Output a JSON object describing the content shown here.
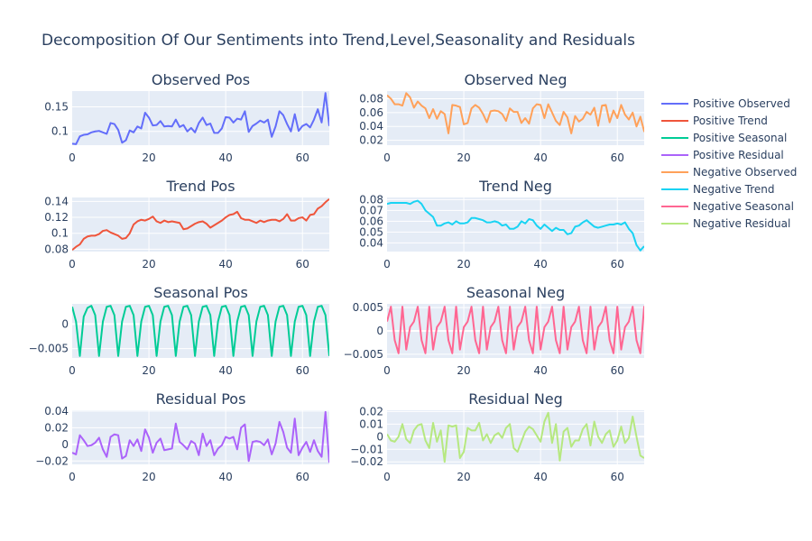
{
  "chart_data": {
    "type": "line",
    "title": "Decomposition Of Our Sentiments into Trend,Level,Seasonality and Residuals",
    "legend": {
      "placement": "right",
      "entries": [
        {
          "name": "Positive Observed",
          "color": "#636efa"
        },
        {
          "name": "Positive Trend",
          "color": "#ef553b"
        },
        {
          "name": "Positive Seasonal",
          "color": "#00cc96"
        },
        {
          "name": "Positive Residual",
          "color": "#ab63fa"
        },
        {
          "name": "Negative Observed",
          "color": "#ffa15a"
        },
        {
          "name": "Negative Trend",
          "color": "#19d3f3"
        },
        {
          "name": "Negative Seasonal",
          "color": "#ff6692"
        },
        {
          "name": "Negative Residual",
          "color": "#b6e880"
        }
      ]
    },
    "panels": [
      {
        "title": "Observed Pos",
        "series_name": "Positive Observed",
        "color": "#636efa",
        "xlim": [
          0,
          67
        ],
        "ylim": [
          0.072,
          0.182
        ],
        "xticks": [
          0,
          20,
          40,
          60
        ],
        "yticks": [
          0.1,
          0.15
        ],
        "ytick_labels": [
          "0.1",
          "0.15"
        ],
        "values": [
          0.075,
          0.074,
          0.09,
          0.093,
          0.094,
          0.098,
          0.1,
          0.101,
          0.098,
          0.095,
          0.117,
          0.115,
          0.103,
          0.077,
          0.082,
          0.102,
          0.098,
          0.11,
          0.106,
          0.138,
          0.128,
          0.112,
          0.113,
          0.121,
          0.11,
          0.111,
          0.11,
          0.124,
          0.109,
          0.113,
          0.1,
          0.107,
          0.098,
          0.117,
          0.128,
          0.113,
          0.116,
          0.097,
          0.097,
          0.106,
          0.129,
          0.128,
          0.118,
          0.126,
          0.124,
          0.141,
          0.099,
          0.111,
          0.116,
          0.122,
          0.118,
          0.124,
          0.089,
          0.11,
          0.141,
          0.133,
          0.115,
          0.1,
          0.135,
          0.101,
          0.111,
          0.115,
          0.108,
          0.124,
          0.145,
          0.118,
          0.178,
          0.111
        ]
      },
      {
        "title": "Observed Neg",
        "series_name": "Negative Observed",
        "color": "#ffa15a",
        "xlim": [
          0,
          67
        ],
        "ylim": [
          0.013,
          0.091
        ],
        "xticks": [
          0,
          20,
          40,
          60
        ],
        "yticks": [
          0.02,
          0.04,
          0.06,
          0.08
        ],
        "ytick_labels": [
          "0.02",
          "0.04",
          "0.06",
          "0.08"
        ],
        "values": [
          0.085,
          0.08,
          0.072,
          0.072,
          0.07,
          0.088,
          0.082,
          0.067,
          0.076,
          0.07,
          0.066,
          0.052,
          0.065,
          0.051,
          0.062,
          0.058,
          0.03,
          0.071,
          0.07,
          0.068,
          0.043,
          0.045,
          0.066,
          0.071,
          0.067,
          0.058,
          0.046,
          0.062,
          0.063,
          0.062,
          0.058,
          0.048,
          0.066,
          0.061,
          0.061,
          0.045,
          0.052,
          0.044,
          0.066,
          0.072,
          0.071,
          0.052,
          0.072,
          0.06,
          0.048,
          0.042,
          0.061,
          0.053,
          0.03,
          0.055,
          0.047,
          0.051,
          0.061,
          0.057,
          0.067,
          0.041,
          0.07,
          0.071,
          0.046,
          0.063,
          0.052,
          0.071,
          0.057,
          0.05,
          0.06,
          0.04,
          0.054,
          0.033,
          0.03,
          0.018
        ]
      },
      {
        "title": "Trend Pos",
        "series_name": "Positive Trend",
        "color": "#ef553b",
        "xlim": [
          0,
          67
        ],
        "ylim": [
          0.077,
          0.145
        ],
        "xticks": [
          0,
          20,
          40,
          60
        ],
        "yticks": [
          0.08,
          0.1,
          0.12,
          0.14
        ],
        "ytick_labels": [
          "0.08",
          "0.1",
          "0.12",
          "0.14"
        ],
        "values": [
          0.079,
          0.083,
          0.086,
          0.093,
          0.096,
          0.097,
          0.097,
          0.099,
          0.103,
          0.104,
          0.101,
          0.099,
          0.097,
          0.093,
          0.094,
          0.1,
          0.111,
          0.115,
          0.117,
          0.116,
          0.118,
          0.121,
          0.115,
          0.113,
          0.116,
          0.114,
          0.115,
          0.114,
          0.113,
          0.105,
          0.106,
          0.109,
          0.112,
          0.114,
          0.115,
          0.112,
          0.107,
          0.11,
          0.113,
          0.116,
          0.12,
          0.123,
          0.124,
          0.127,
          0.119,
          0.117,
          0.117,
          0.115,
          0.113,
          0.116,
          0.114,
          0.116,
          0.117,
          0.117,
          0.115,
          0.118,
          0.124,
          0.116,
          0.116,
          0.119,
          0.12,
          0.116,
          0.123,
          0.124,
          0.131,
          0.134,
          0.139,
          0.143
        ]
      },
      {
        "title": "Trend Neg",
        "series_name": "Negative Trend",
        "color": "#19d3f3",
        "xlim": [
          0,
          67
        ],
        "ylim": [
          0.032,
          0.082
        ],
        "xticks": [
          0,
          20,
          40,
          60
        ],
        "yticks": [
          0.04,
          0.05,
          0.06,
          0.07,
          0.08
        ],
        "ytick_labels": [
          "0.04",
          "0.05",
          "0.06",
          "0.07",
          "0.08"
        ],
        "values": [
          0.076,
          0.077,
          0.077,
          0.077,
          0.077,
          0.077,
          0.076,
          0.078,
          0.079,
          0.076,
          0.07,
          0.067,
          0.064,
          0.056,
          0.056,
          0.058,
          0.059,
          0.057,
          0.06,
          0.058,
          0.058,
          0.059,
          0.063,
          0.063,
          0.062,
          0.061,
          0.059,
          0.059,
          0.06,
          0.059,
          0.056,
          0.057,
          0.053,
          0.053,
          0.055,
          0.06,
          0.058,
          0.062,
          0.061,
          0.056,
          0.053,
          0.057,
          0.054,
          0.051,
          0.054,
          0.052,
          0.052,
          0.048,
          0.049,
          0.055,
          0.056,
          0.059,
          0.061,
          0.058,
          0.055,
          0.054,
          0.055,
          0.056,
          0.057,
          0.057,
          0.058,
          0.057,
          0.059,
          0.053,
          0.049,
          0.038,
          0.033,
          0.037
        ]
      },
      {
        "title": "Seasonal Pos",
        "series_name": "Positive Seasonal",
        "color": "#00cc96",
        "xlim": [
          0,
          67
        ],
        "ylim": [
          -0.0069,
          0.0041
        ],
        "xticks": [
          0,
          20,
          40,
          60
        ],
        "yticks": [
          -0.005,
          0
        ],
        "ytick_labels": [
          "−0.005",
          "0"
        ],
        "values": [
          0.0035,
          0.0005,
          -0.0065,
          0.0015,
          0.0033,
          0.0037,
          0.0018,
          -0.0065,
          0.0005,
          0.0035,
          0.0037,
          0.0018,
          -0.0065,
          0.0005,
          0.0035,
          0.0037,
          0.0018,
          -0.0065,
          0.0005,
          0.0035,
          0.0037,
          0.0018,
          -0.0065,
          0.0005,
          0.0035,
          0.0037,
          0.0018,
          -0.0065,
          0.0005,
          0.0035,
          0.0037,
          0.0018,
          -0.0065,
          0.0005,
          0.0035,
          0.0037,
          0.0018,
          -0.0065,
          0.0005,
          0.0035,
          0.0037,
          0.0018,
          -0.0065,
          0.0005,
          0.0035,
          0.0037,
          0.0018,
          -0.0065,
          0.0005,
          0.0035,
          0.0037,
          0.0018,
          -0.0065,
          0.0005,
          0.0035,
          0.0037,
          0.0018,
          -0.0065,
          0.0005,
          0.0035,
          0.0037,
          0.0018,
          -0.0065,
          0.0005,
          0.0035,
          0.0037,
          0.0018,
          -0.0065
        ]
      },
      {
        "title": "Seasonal Neg",
        "series_name": "Negative Seasonal",
        "color": "#ff6692",
        "xlim": [
          0,
          67
        ],
        "ylim": [
          -0.0058,
          0.0058
        ],
        "xticks": [
          0,
          20,
          40,
          60
        ],
        "yticks": [
          -0.005,
          0,
          0.005
        ],
        "ytick_labels": [
          "−0.005",
          "0",
          "0.005"
        ],
        "values": [
          0.002,
          0.0052,
          -0.002,
          -0.0048,
          0.0052,
          -0.004,
          0.0008,
          0.002,
          0.0052,
          -0.002,
          -0.0048,
          0.0052,
          -0.004,
          0.0008,
          0.002,
          0.0052,
          -0.002,
          -0.0048,
          0.0052,
          -0.004,
          0.0008,
          0.002,
          0.0052,
          -0.002,
          -0.0048,
          0.0052,
          -0.004,
          0.0008,
          0.002,
          0.0052,
          -0.002,
          -0.0048,
          0.0052,
          -0.004,
          0.0008,
          0.002,
          0.0052,
          -0.002,
          -0.0048,
          0.0052,
          -0.004,
          0.0008,
          0.002,
          0.0052,
          -0.002,
          -0.0048,
          0.0052,
          -0.004,
          0.0008,
          0.002,
          0.0052,
          -0.002,
          -0.0048,
          0.0052,
          -0.004,
          0.0008,
          0.002,
          0.0052,
          -0.002,
          -0.0048,
          0.0052,
          -0.004,
          0.0008,
          0.002,
          0.0052,
          -0.002,
          -0.0048,
          0.0052,
          -0.001
        ]
      },
      {
        "title": "Residual Pos",
        "series_name": "Positive Residual",
        "color": "#ab63fa",
        "xlim": [
          0,
          67
        ],
        "ylim": [
          -0.024,
          0.041
        ],
        "xticks": [
          0,
          20,
          40,
          60
        ],
        "yticks": [
          -0.02,
          0,
          0.02,
          0.04
        ],
        "ytick_labels": [
          "−0.02",
          "0",
          "0.02",
          "0.04"
        ],
        "values": [
          -0.01,
          -0.012,
          0.011,
          0.005,
          -0.002,
          -0.001,
          0.002,
          0.008,
          -0.006,
          -0.015,
          0.009,
          0.012,
          0.011,
          -0.017,
          -0.014,
          0.005,
          -0.002,
          0.006,
          -0.008,
          0.018,
          0.008,
          -0.01,
          0.002,
          0.007,
          -0.007,
          -0.006,
          -0.005,
          0.025,
          0.003,
          -0.001,
          -0.006,
          0.004,
          0.001,
          -0.013,
          0.013,
          -0.002,
          0.005,
          -0.013,
          -0.005,
          -0.001,
          0.009,
          0.007,
          0.009,
          -0.006,
          0.02,
          0.024,
          -0.02,
          0.003,
          0.004,
          0.003,
          -0.001,
          0.006,
          -0.012,
          0.001,
          0.027,
          0.015,
          -0.004,
          -0.01,
          0.031,
          -0.013,
          -0.004,
          0.003,
          -0.009,
          0.005,
          -0.008,
          -0.015,
          0.039,
          -0.022
        ]
      },
      {
        "title": "Residual Neg",
        "series_name": "Negative Residual",
        "color": "#b6e880",
        "xlim": [
          0,
          67
        ],
        "ylim": [
          -0.022,
          0.021
        ],
        "xticks": [
          0,
          20,
          40,
          60
        ],
        "yticks": [
          -0.02,
          -0.01,
          0,
          0.01,
          0.02
        ],
        "ytick_labels": [
          "−0.02",
          "−0.01",
          "0",
          "0.01",
          "0.02"
        ],
        "values": [
          0.002,
          -0.003,
          -0.004,
          0.0,
          0.01,
          -0.002,
          -0.005,
          0.005,
          0.009,
          0.01,
          -0.003,
          -0.009,
          0.011,
          -0.004,
          0.005,
          -0.02,
          0.009,
          0.008,
          0.009,
          -0.017,
          -0.012,
          0.007,
          0.005,
          0.005,
          0.011,
          -0.003,
          0.002,
          -0.005,
          0.001,
          0.003,
          -0.001,
          0.007,
          0.01,
          -0.009,
          -0.012,
          -0.004,
          0.004,
          0.008,
          0.006,
          0.001,
          -0.004,
          0.012,
          0.019,
          -0.005,
          0.01,
          -0.019,
          0.004,
          0.007,
          -0.008,
          -0.003,
          -0.003,
          0.006,
          0.01,
          -0.007,
          0.012,
          0.0,
          -0.005,
          0.002,
          0.005,
          -0.008,
          -0.003,
          0.008,
          -0.005,
          -0.001,
          0.016,
          0.0,
          -0.015,
          -0.017
        ]
      }
    ]
  }
}
